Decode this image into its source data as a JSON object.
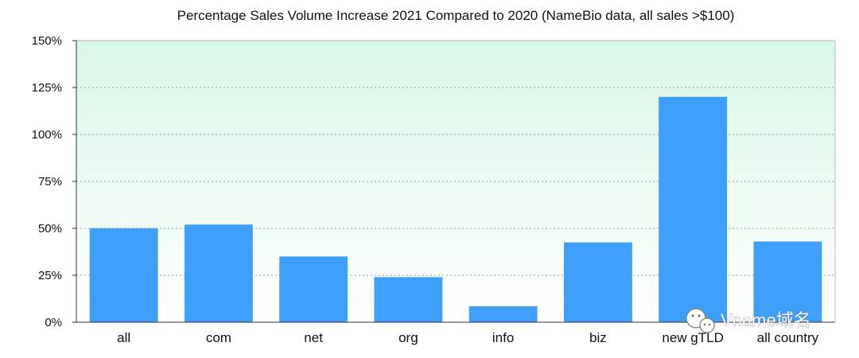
{
  "chart_data": {
    "type": "bar",
    "title": "Percentage Sales Volume Increase 2021 Compared to 2020 (NameBio data, all sales >$100)",
    "xlabel": "",
    "ylabel": "",
    "categories": [
      "all",
      "com",
      "net",
      "org",
      "info",
      "biz",
      "new gTLD",
      "all country"
    ],
    "values": [
      50,
      52,
      35,
      24,
      8.5,
      42.5,
      120,
      43
    ],
    "ylim": [
      0,
      150
    ],
    "yticks": [
      0,
      25,
      50,
      75,
      100,
      125,
      150
    ],
    "ytick_labels": [
      "0%",
      "25%",
      "50%",
      "75%",
      "100%",
      "125%",
      "150%"
    ],
    "grid": true,
    "bar_color": "#3d9ff9",
    "plot_background_top": "#d8f7e6",
    "plot_background_bottom": "#ffffff"
  },
  "watermark": {
    "text": "Vname域名",
    "icon": "wechat-icon"
  }
}
